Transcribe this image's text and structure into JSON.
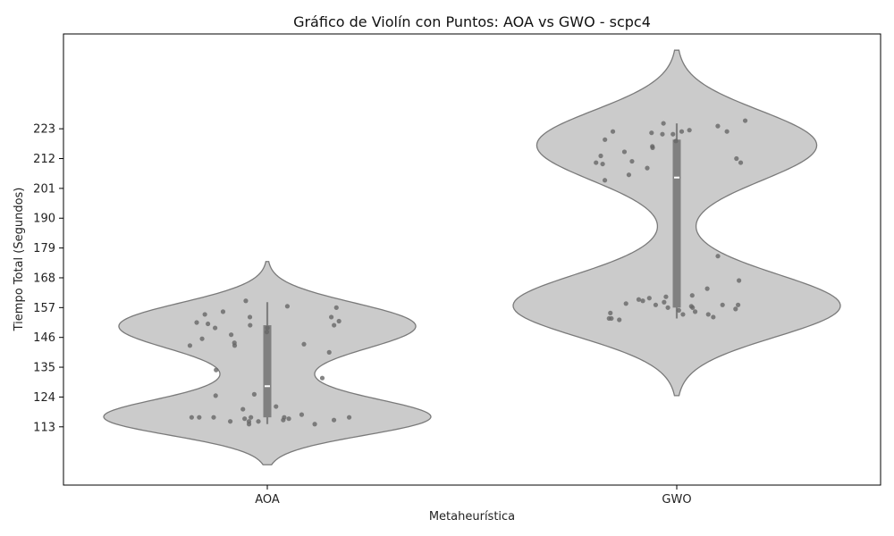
{
  "chart_data": {
    "type": "violin",
    "title": "Gráfico de Violín con Puntos: AOA vs GWO - scpc4",
    "xlabel": "Metaheurística",
    "ylabel": "Tiempo Total (Segundos)",
    "categories": [
      "AOA",
      "GWO"
    ],
    "yticks": [
      113,
      124,
      135,
      146,
      157,
      168,
      179,
      190,
      201,
      212,
      223
    ],
    "ylim": [
      91.5,
      258
    ],
    "grid": false,
    "colors": {
      "violin_fill": "#cbcbcb",
      "violin_edge": "#7a7a7a",
      "box": "#808080",
      "median": "#ffffff",
      "points": "#666666"
    },
    "series": [
      {
        "category": "AOA",
        "median": 128,
        "q1": 116.5,
        "q3": 150.5,
        "whisker_low": 114,
        "whisker_high": 159,
        "violin_min": 99,
        "violin_max": 174,
        "points": [
          153.5,
          157,
          151.5,
          153.5,
          150.5,
          151,
          159.5,
          149.5,
          157.5,
          155.5,
          154.5,
          152,
          150.5,
          149.5,
          148,
          147,
          145.5,
          143.5,
          143,
          144,
          143,
          140.5,
          134,
          131,
          125,
          124.5,
          120.5,
          119.5,
          117.5,
          116.5,
          116.5,
          116.5,
          116.5,
          116.5,
          116.5,
          116,
          116,
          115.5,
          115.5,
          115,
          115,
          115,
          114,
          114
        ]
      },
      {
        "category": "GWO",
        "median": 205,
        "q1": 157,
        "q3": 219,
        "whisker_low": 153,
        "whisker_high": 225,
        "violin_min": 124.5,
        "violin_max": 252,
        "points": [
          226,
          221.5,
          225,
          222,
          221,
          222,
          222,
          222.5,
          224,
          221,
          219,
          218.5,
          216.5,
          216,
          214.5,
          213,
          212,
          211,
          210.5,
          210.5,
          210,
          208.5,
          206,
          204,
          176,
          167,
          164,
          161.5,
          161,
          160.5,
          160,
          159.5,
          159,
          158.5,
          158,
          158,
          158,
          157.5,
          157,
          157,
          156.5,
          156,
          155.5,
          155,
          154.5,
          154.5,
          153.5,
          153,
          153,
          152.5
        ]
      }
    ]
  }
}
